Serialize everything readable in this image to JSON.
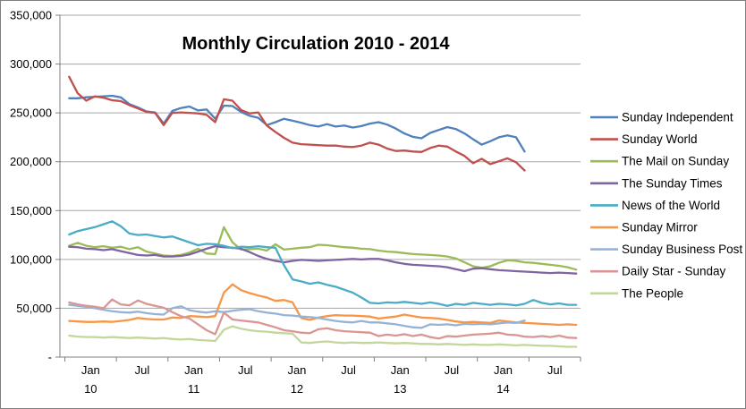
{
  "title": "Monthly Circulation 2010 - 2014",
  "colors": {
    "grid": "#a6a6a6",
    "axis": "#808080",
    "text": "#000000",
    "background": "#ffffff",
    "border": "#7f7f7f"
  },
  "chart_data": {
    "type": "line",
    "title": "Monthly Circulation 2010 - 2014",
    "x_start": "Jan 2010",
    "x_end": "Dec 2014",
    "x_months_total": 60,
    "ylim": [
      0,
      350000
    ],
    "y_tick_step": 50000,
    "grid": true,
    "legend_position": "right",
    "y_tick_labels_top_to_bottom": [
      "350,000",
      "300,000",
      "250,000",
      "200,000",
      "150,000",
      "100,000",
      "50,000",
      "-"
    ],
    "x_tick_labels": [
      {
        "month": "Jan",
        "year": "10"
      },
      {
        "month": "Jul",
        "year": ""
      },
      {
        "month": "Jan",
        "year": "11"
      },
      {
        "month": "Jul",
        "year": ""
      },
      {
        "month": "Jan",
        "year": "12"
      },
      {
        "month": "Jul",
        "year": ""
      },
      {
        "month": "Jan",
        "year": "13"
      },
      {
        "month": "Jul",
        "year": ""
      },
      {
        "month": "Jan",
        "year": "14"
      },
      {
        "month": "Jul",
        "year": ""
      }
    ],
    "series": [
      {
        "name": "Sunday Independent",
        "color": "#4F81BD",
        "values": [
          265000,
          265000,
          266000,
          266500,
          267000,
          267500,
          266000,
          259000,
          255500,
          251500,
          250500,
          239000,
          252000,
          255000,
          256500,
          252500,
          253500,
          244000,
          257500,
          257000,
          251000,
          247000,
          245000,
          237500,
          240500,
          244000,
          242000,
          240000,
          237500,
          236000,
          238500,
          236000,
          237000,
          235000,
          236500,
          239000,
          240500,
          238000,
          234000,
          229000,
          225500,
          224000,
          229500,
          232500,
          235500,
          233500,
          229000,
          223000,
          217500,
          221000,
          225000,
          227000,
          225000,
          210500
        ]
      },
      {
        "name": "Sunday World",
        "color": "#C0504D",
        "values": [
          287000,
          270000,
          262500,
          267000,
          265500,
          263000,
          262000,
          258000,
          254500,
          251000,
          250000,
          237500,
          250000,
          250500,
          250000,
          249500,
          248000,
          240500,
          264000,
          262500,
          253000,
          249500,
          250500,
          237000,
          230500,
          224500,
          219500,
          218000,
          217500,
          217000,
          216500,
          216500,
          215500,
          215000,
          216500,
          219500,
          217500,
          213500,
          211000,
          211500,
          210500,
          210000,
          214000,
          216500,
          215500,
          210500,
          206000,
          198500,
          203000,
          197500,
          200500,
          203500,
          199500,
          191000
        ]
      },
      {
        "name": "The Mail on Sunday",
        "color": "#9BBB59",
        "values": [
          114000,
          117000,
          114000,
          112500,
          113500,
          112000,
          113000,
          110500,
          112500,
          108000,
          106000,
          104000,
          103500,
          104500,
          107000,
          111000,
          106000,
          105500,
          133000,
          117500,
          110000,
          110500,
          111000,
          109000,
          115500,
          110000,
          111000,
          112000,
          112500,
          115000,
          114500,
          113500,
          112500,
          112000,
          111000,
          110500,
          109000,
          108000,
          107500,
          106500,
          105500,
          105000,
          104500,
          104000,
          103000,
          101000,
          97000,
          93000,
          91500,
          93000,
          96500,
          99000,
          98500,
          97000,
          96500,
          95500,
          94500,
          93500,
          92000,
          89500
        ]
      },
      {
        "name": "The Sunday Times",
        "color": "#8064A2",
        "values": [
          113000,
          112500,
          111000,
          110500,
          109500,
          110500,
          108500,
          106500,
          104500,
          104000,
          104500,
          103000,
          103000,
          103500,
          105000,
          108000,
          111000,
          113500,
          112500,
          112000,
          111000,
          107500,
          103500,
          100500,
          98500,
          97000,
          98500,
          99500,
          99000,
          98500,
          99000,
          99500,
          100000,
          100500,
          100000,
          100500,
          100500,
          99000,
          97000,
          95500,
          94500,
          94000,
          93500,
          93000,
          92000,
          90000,
          88000,
          90500,
          91000,
          90000,
          89000,
          88500,
          88000,
          87500,
          87000,
          86500,
          86000,
          86500,
          86000,
          85500
        ]
      },
      {
        "name": "News of the World",
        "color": "#4BACC6",
        "values": [
          125500,
          129000,
          131000,
          133000,
          136000,
          139000,
          134000,
          126500,
          125000,
          125500,
          124000,
          122500,
          123500,
          120500,
          117500,
          114500,
          116000,
          115500,
          114000,
          111500,
          113000,
          112500,
          113500,
          112500,
          112000,
          94000,
          79500,
          77500,
          75000,
          76500,
          74000,
          72000,
          69000,
          66000,
          61000,
          55500,
          55000,
          56000,
          55500,
          56500,
          55500,
          54500,
          56000,
          54500,
          52500,
          54500,
          53500,
          55500,
          54500,
          53500,
          54500,
          54000,
          53000,
          54500,
          58500,
          55500,
          54000,
          55000,
          53500,
          53500
        ]
      },
      {
        "name": "Sunday Mirror",
        "color": "#F79646",
        "values": [
          37000,
          36500,
          36000,
          36000,
          36500,
          36000,
          37000,
          38000,
          40000,
          39000,
          38500,
          38500,
          40500,
          40000,
          42000,
          41500,
          41000,
          42000,
          66000,
          74500,
          68500,
          65500,
          63000,
          61000,
          57500,
          58500,
          56000,
          40000,
          38000,
          40500,
          42000,
          43000,
          42500,
          42500,
          42000,
          41500,
          39500,
          40500,
          41500,
          43500,
          42000,
          40500,
          40000,
          39500,
          38000,
          36500,
          35500,
          36000,
          35500,
          35000,
          37500,
          36500,
          35500,
          35000,
          34500,
          34000,
          33500,
          33000,
          33500,
          33000
        ]
      },
      {
        "name": "Sunday Business Post",
        "color": "#95B3D7",
        "values": [
          53500,
          52500,
          51500,
          50000,
          48500,
          47000,
          46000,
          45500,
          46500,
          45000,
          44000,
          43500,
          50000,
          52000,
          48000,
          46500,
          45500,
          47000,
          46000,
          47500,
          48500,
          49000,
          47000,
          45500,
          44500,
          43000,
          42500,
          41500,
          41000,
          40000,
          38500,
          37000,
          36000,
          35500,
          37000,
          35500,
          35500,
          34500,
          33500,
          32000,
          30500,
          30000,
          33500,
          33000,
          33500,
          32500,
          34000,
          33500,
          34000,
          33500,
          34500,
          35500,
          35000,
          37500
        ]
      },
      {
        "name": "Daily Star - Sunday",
        "color": "#D99694",
        "values": [
          56000,
          54000,
          52500,
          51500,
          50000,
          59000,
          54000,
          53000,
          58000,
          54500,
          52500,
          50500,
          46000,
          42000,
          39500,
          33500,
          27500,
          23500,
          45500,
          38500,
          37500,
          36500,
          35500,
          33000,
          30500,
          27500,
          26500,
          25000,
          24500,
          28500,
          29500,
          27500,
          26500,
          26000,
          25500,
          25000,
          21500,
          23000,
          22000,
          23500,
          21500,
          23000,
          20500,
          19000,
          21500,
          21000,
          22000,
          23000,
          23500,
          24000,
          25000,
          23000,
          22500,
          21000,
          20500,
          21500,
          20500,
          22000,
          20000,
          19500
        ]
      },
      {
        "name": "The People",
        "color": "#C3D69B",
        "values": [
          22000,
          21000,
          20500,
          20500,
          20000,
          20500,
          20000,
          19500,
          20000,
          19500,
          19000,
          19500,
          18500,
          18000,
          18500,
          17500,
          17000,
          16500,
          28000,
          31500,
          29000,
          27500,
          26500,
          26000,
          25000,
          24500,
          24000,
          15000,
          14500,
          15500,
          16000,
          15000,
          14500,
          15000,
          14500,
          14500,
          15000,
          14500,
          14000,
          14500,
          14000,
          13500,
          13500,
          13000,
          13500,
          13000,
          12500,
          13000,
          12500,
          12500,
          13000,
          12500,
          12000,
          12500,
          12000,
          11500,
          11500,
          11000,
          10500,
          10500
        ]
      }
    ]
  }
}
